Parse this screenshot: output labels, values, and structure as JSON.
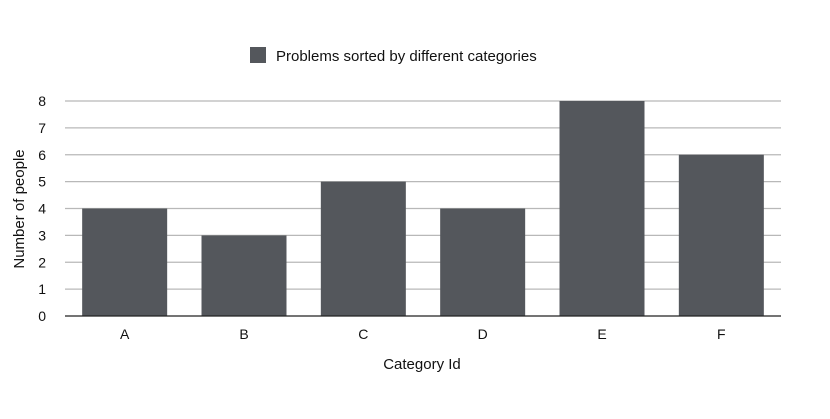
{
  "chart_data": {
    "type": "bar",
    "categories": [
      "A",
      "B",
      "C",
      "D",
      "E",
      "F"
    ],
    "series": [
      {
        "name": "Problems sorted by different categories",
        "values": [
          4,
          3,
          5,
          4,
          8,
          6
        ],
        "color": "#54575c"
      }
    ],
    "title": "",
    "xlabel": "Category Id",
    "ylabel": "Number of people",
    "ylim": [
      0,
      8
    ],
    "yticks": [
      0,
      1,
      2,
      3,
      4,
      5,
      6,
      7,
      8
    ],
    "grid": true,
    "legend_position": "top-center",
    "gridline_color": "#b8b8b8",
    "axis_color": "#222222"
  }
}
